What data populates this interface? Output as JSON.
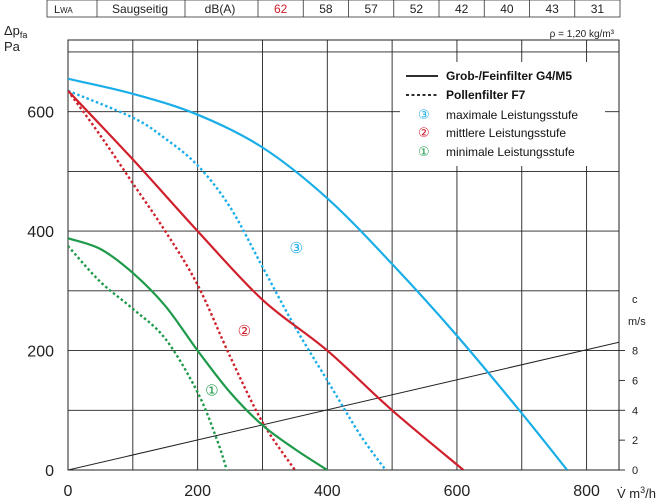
{
  "chart_data": {
    "type": "line",
    "title": "",
    "header_table": {
      "label_main": "L",
      "label_sub": "WA",
      "side": "Saugseitig",
      "unit": "dB(A)",
      "values": [
        "62",
        "58",
        "57",
        "52",
        "42",
        "40",
        "43",
        "31"
      ],
      "highlight_color": "#d0202c"
    },
    "density_note": "ρ = 1,20 kg/m³",
    "ylabel_main": "Δp",
    "ylabel_sub": "fa",
    "ylabel_unit": "Pa",
    "xlabel_main": "V̇ m",
    "xlabel_sup": "3",
    "xlabel_tail": "/h",
    "xlim": [
      0,
      850
    ],
    "ylim": [
      0,
      720
    ],
    "xticks": [
      0,
      200,
      400,
      600,
      800
    ],
    "yticks": [
      0,
      200,
      400,
      600
    ],
    "grid": true,
    "right_axis": {
      "label": "c",
      "unit": "m/s",
      "ticks": [
        0,
        2,
        4,
        6,
        8
      ],
      "pa_per_unit": 25
    },
    "velocity_line": {
      "x": [
        0,
        850
      ],
      "y": [
        0,
        214
      ]
    },
    "legend": {
      "position": "top-right",
      "solid_label": "Grob-/Feinfilter G4/M5",
      "dashed_label": "Pollenfilter F7",
      "stages": [
        {
          "symbol": "③",
          "label": "maximale Leistungsstufe",
          "color": "#1aaee8"
        },
        {
          "symbol": "②",
          "label": "mittlere Leistungsstufe",
          "color": "#d0202c"
        },
        {
          "symbol": "①",
          "label": "minimale Leistungsstufe",
          "color": "#1e9a4a"
        }
      ]
    },
    "series": [
      {
        "stage": "③",
        "filter": "G4/M5",
        "color": "#1aaee8",
        "dashed": false,
        "x": [
          0,
          100,
          200,
          300,
          400,
          500,
          600,
          700,
          770
        ],
        "y": [
          655,
          630,
          595,
          540,
          455,
          345,
          225,
          95,
          0
        ]
      },
      {
        "stage": "③",
        "filter": "F7",
        "color": "#1aaee8",
        "dashed": true,
        "x": [
          0,
          100,
          150,
          200,
          250,
          300,
          350,
          400,
          450,
          490
        ],
        "y": [
          635,
          590,
          555,
          510,
          440,
          340,
          240,
          150,
          60,
          0
        ]
      },
      {
        "stage": "②",
        "filter": "G4/M5",
        "color": "#d0202c",
        "dashed": false,
        "x": [
          0,
          100,
          200,
          300,
          400,
          500,
          610
        ],
        "y": [
          635,
          520,
          400,
          285,
          200,
          100,
          0
        ]
      },
      {
        "stage": "②",
        "filter": "F7",
        "color": "#d0202c",
        "dashed": true,
        "x": [
          0,
          50,
          100,
          150,
          200,
          250,
          300,
          350
        ],
        "y": [
          635,
          560,
          480,
          400,
          310,
          190,
          80,
          0
        ]
      },
      {
        "stage": "①",
        "filter": "G4/M5",
        "color": "#1e9a4a",
        "dashed": false,
        "x": [
          0,
          50,
          100,
          150,
          200,
          250,
          300,
          350,
          400
        ],
        "y": [
          388,
          370,
          330,
          275,
          200,
          130,
          75,
          35,
          0
        ]
      },
      {
        "stage": "①",
        "filter": "F7",
        "color": "#1e9a4a",
        "dashed": true,
        "x": [
          0,
          50,
          100,
          150,
          200,
          230,
          245
        ],
        "y": [
          375,
          315,
          270,
          220,
          130,
          50,
          0
        ]
      }
    ],
    "stage_markers": [
      {
        "symbol": "③",
        "x": 352,
        "y": 372,
        "color": "#1aaee8"
      },
      {
        "symbol": "②",
        "x": 272,
        "y": 233,
        "color": "#d0202c"
      },
      {
        "symbol": "①",
        "x": 222,
        "y": 133,
        "color": "#1e9a4a"
      }
    ]
  }
}
